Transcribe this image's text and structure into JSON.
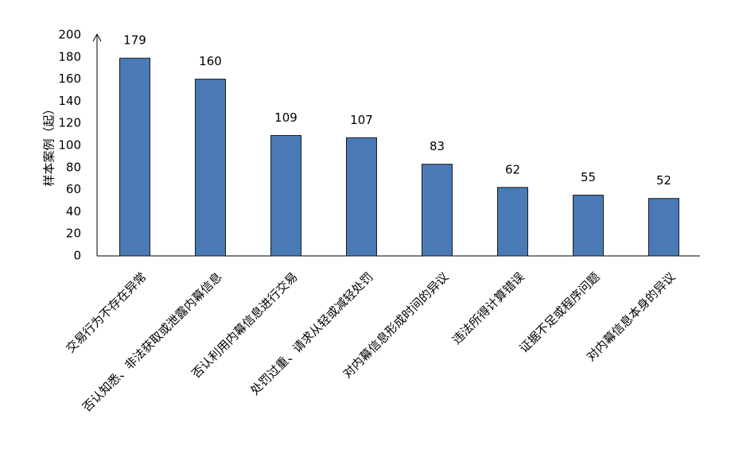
{
  "chart_data": {
    "type": "bar",
    "y_label": "样本案例（起）",
    "categories": [
      "交易行为不存在异常",
      "否认知悉、非法获取或泄露内幕信息",
      "否认利用内幕信息进行交易",
      "处罚过重、请求从轻或减轻处罚",
      "对内幕信息形成时间的异议",
      "违法所得计算错误",
      "证据不足或程序问题",
      "对内幕信息本身的异议"
    ],
    "values": [
      179,
      160,
      109,
      107,
      83,
      62,
      55,
      52
    ],
    "color": "#4a7ab5",
    "ylim": [
      0,
      200
    ],
    "yticks": [
      0,
      20,
      40,
      60,
      80,
      100,
      120,
      140,
      160,
      180,
      200
    ],
    "grid": false
  }
}
